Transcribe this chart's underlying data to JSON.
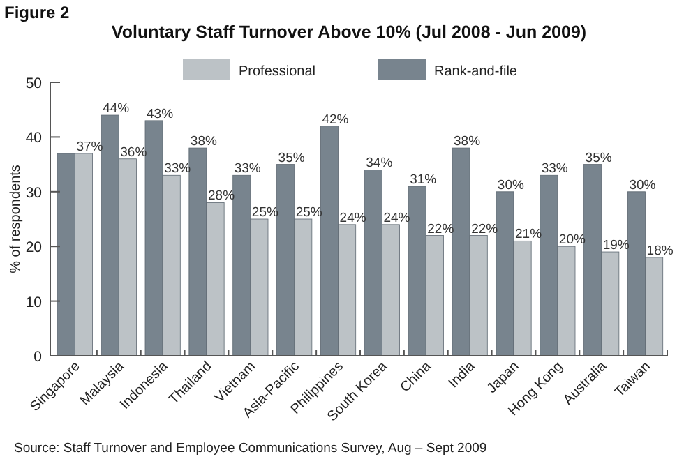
{
  "chart_data": {
    "type": "bar",
    "title": "Voluntary Staff Turnover Above 10% (Jul 2008 - Jun 2009)",
    "ylabel": "% of respondents",
    "annotations": [
      "Figure 2",
      "Source: Staff Turnover and Employee Communications Survey, Aug – Sept 2009"
    ],
    "categories": [
      "Singapore",
      "Malaysia",
      "Indonesia",
      "Thailand",
      "Vietnam",
      "Asia-Pacific",
      "Philippines",
      "South Korea",
      "China",
      "India",
      "Japan",
      "Hong Kong",
      "Australia",
      "Taiwan"
    ],
    "series": [
      {
        "name": "Rank-and-file",
        "color": "#78848e",
        "values": [
          37,
          44,
          43,
          38,
          33,
          35,
          42,
          34,
          31,
          38,
          30,
          33,
          35,
          30
        ],
        "value_labels": [
          null,
          "44%",
          "43%",
          "38%",
          "33%",
          "35%",
          "42%",
          "34%",
          "31%",
          "38%",
          "30%",
          "33%",
          "35%",
          "30%"
        ]
      },
      {
        "name": "Professional",
        "color": "#bcc2c6",
        "values": [
          37,
          36,
          33,
          28,
          25,
          25,
          24,
          24,
          22,
          22,
          21,
          20,
          19,
          18
        ],
        "value_labels": [
          "37%",
          "36%",
          "33%",
          "28%",
          "25%",
          "25%",
          "24%",
          "24%",
          "22%",
          "22%",
          "21%",
          "20%",
          "19%",
          "18%"
        ]
      }
    ],
    "ylim": [
      0,
      50
    ],
    "yticks": [
      0,
      10,
      20,
      30,
      40,
      50
    ],
    "grid": false,
    "legend": "top"
  }
}
